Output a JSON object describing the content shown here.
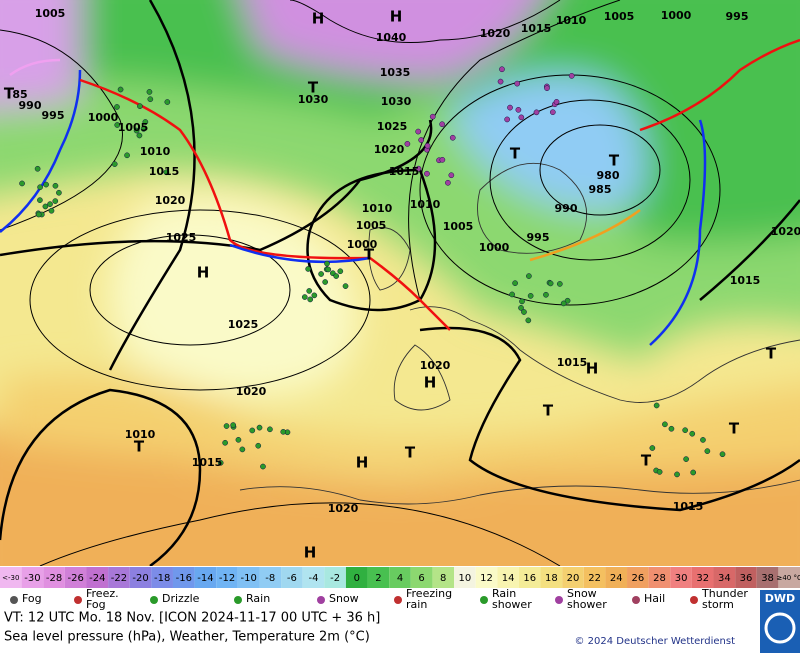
{
  "map": {
    "isobar_labels": [
      "1005",
      "1000",
      "995",
      "1010",
      "1005",
      "1020",
      "1015",
      "1040",
      "1035",
      "1030",
      "1025",
      "1020",
      "1015",
      "990",
      "995",
      "1000",
      "1005",
      "1010",
      "1015",
      "1020",
      "1025",
      "1025",
      "1020",
      "1010",
      "1005",
      "1000",
      "1010",
      "1005",
      "1000",
      "995",
      "990",
      "985",
      "980",
      "1020",
      "1015",
      "1015",
      "1010",
      "1015",
      "1020",
      "1015",
      "1030",
      "1020",
      "85"
    ],
    "centers": [
      "H",
      "H",
      "T",
      "T",
      "H",
      "T",
      "T",
      "T",
      "H",
      "H",
      "T",
      "T",
      "H",
      "T",
      "T",
      "T",
      "T",
      "H"
    ]
  },
  "scale": [
    {
      "label": "<-30",
      "color": "#f0b8f0"
    },
    {
      "label": "-30",
      "color": "#e8a0e8"
    },
    {
      "label": "-28",
      "color": "#e090e0"
    },
    {
      "label": "-26",
      "color": "#d080d8"
    },
    {
      "label": "-24",
      "color": "#c070d0"
    },
    {
      "label": "-22",
      "color": "#a878d8"
    },
    {
      "label": "-20",
      "color": "#8c80e0"
    },
    {
      "label": "-18",
      "color": "#7c8ce8"
    },
    {
      "label": "-16",
      "color": "#7098ec"
    },
    {
      "label": "-14",
      "color": "#68a8f0"
    },
    {
      "label": "-12",
      "color": "#70b4f4"
    },
    {
      "label": "-10",
      "color": "#80c0f4"
    },
    {
      "label": "-8",
      "color": "#90ccf4"
    },
    {
      "label": "-6",
      "color": "#a0d8f0"
    },
    {
      "label": "-4",
      "color": "#b0e4f0"
    },
    {
      "label": "-2",
      "color": "#a8e8e0"
    },
    {
      "label": "0",
      "color": "#30b040"
    },
    {
      "label": "2",
      "color": "#48c050"
    },
    {
      "label": "4",
      "color": "#68cc60"
    },
    {
      "label": "6",
      "color": "#8cd870"
    },
    {
      "label": "8",
      "color": "#b4e488"
    },
    {
      "label": "10",
      "color": "#f4f4e0"
    },
    {
      "label": "12",
      "color": "#fafac8"
    },
    {
      "label": "14",
      "color": "#f8f4b0"
    },
    {
      "label": "16",
      "color": "#f4ec98"
    },
    {
      "label": "18",
      "color": "#f4e080"
    },
    {
      "label": "20",
      "color": "#f4d070"
    },
    {
      "label": "22",
      "color": "#f4c060"
    },
    {
      "label": "24",
      "color": "#f0b058"
    },
    {
      "label": "26",
      "color": "#f0a060"
    },
    {
      "label": "28",
      "color": "#f09070"
    },
    {
      "label": "30",
      "color": "#f08080"
    },
    {
      "label": "32",
      "color": "#e87070"
    },
    {
      "label": "34",
      "color": "#d86868"
    },
    {
      "label": "36",
      "color": "#c06060"
    },
    {
      "label": "38",
      "color": "#a87070"
    },
    {
      "label": "≥40 °C",
      "color": "#c8a8a0"
    }
  ],
  "legend": [
    [
      "Fog"
    ],
    [
      "Freez.",
      "Fog"
    ],
    [
      "Drizzle"
    ],
    [
      "Rain"
    ],
    [
      "Snow"
    ],
    [
      "Freezing",
      "rain"
    ],
    [
      "Rain",
      "shower"
    ],
    [
      "Snow",
      "shower"
    ],
    [
      "Hail"
    ],
    [
      "Thunder",
      "storm"
    ]
  ],
  "footer": {
    "valid": "VT: 12 UTC Mo.  18 Nov. [ICON 2024-11-17  00 UTC + 36 h]",
    "description": "Sea level pressure (hPa), Weather, Temperature 2m (°C)",
    "copyright": "© 2024 Deutscher Wetterdienst",
    "logo": "DWD"
  }
}
